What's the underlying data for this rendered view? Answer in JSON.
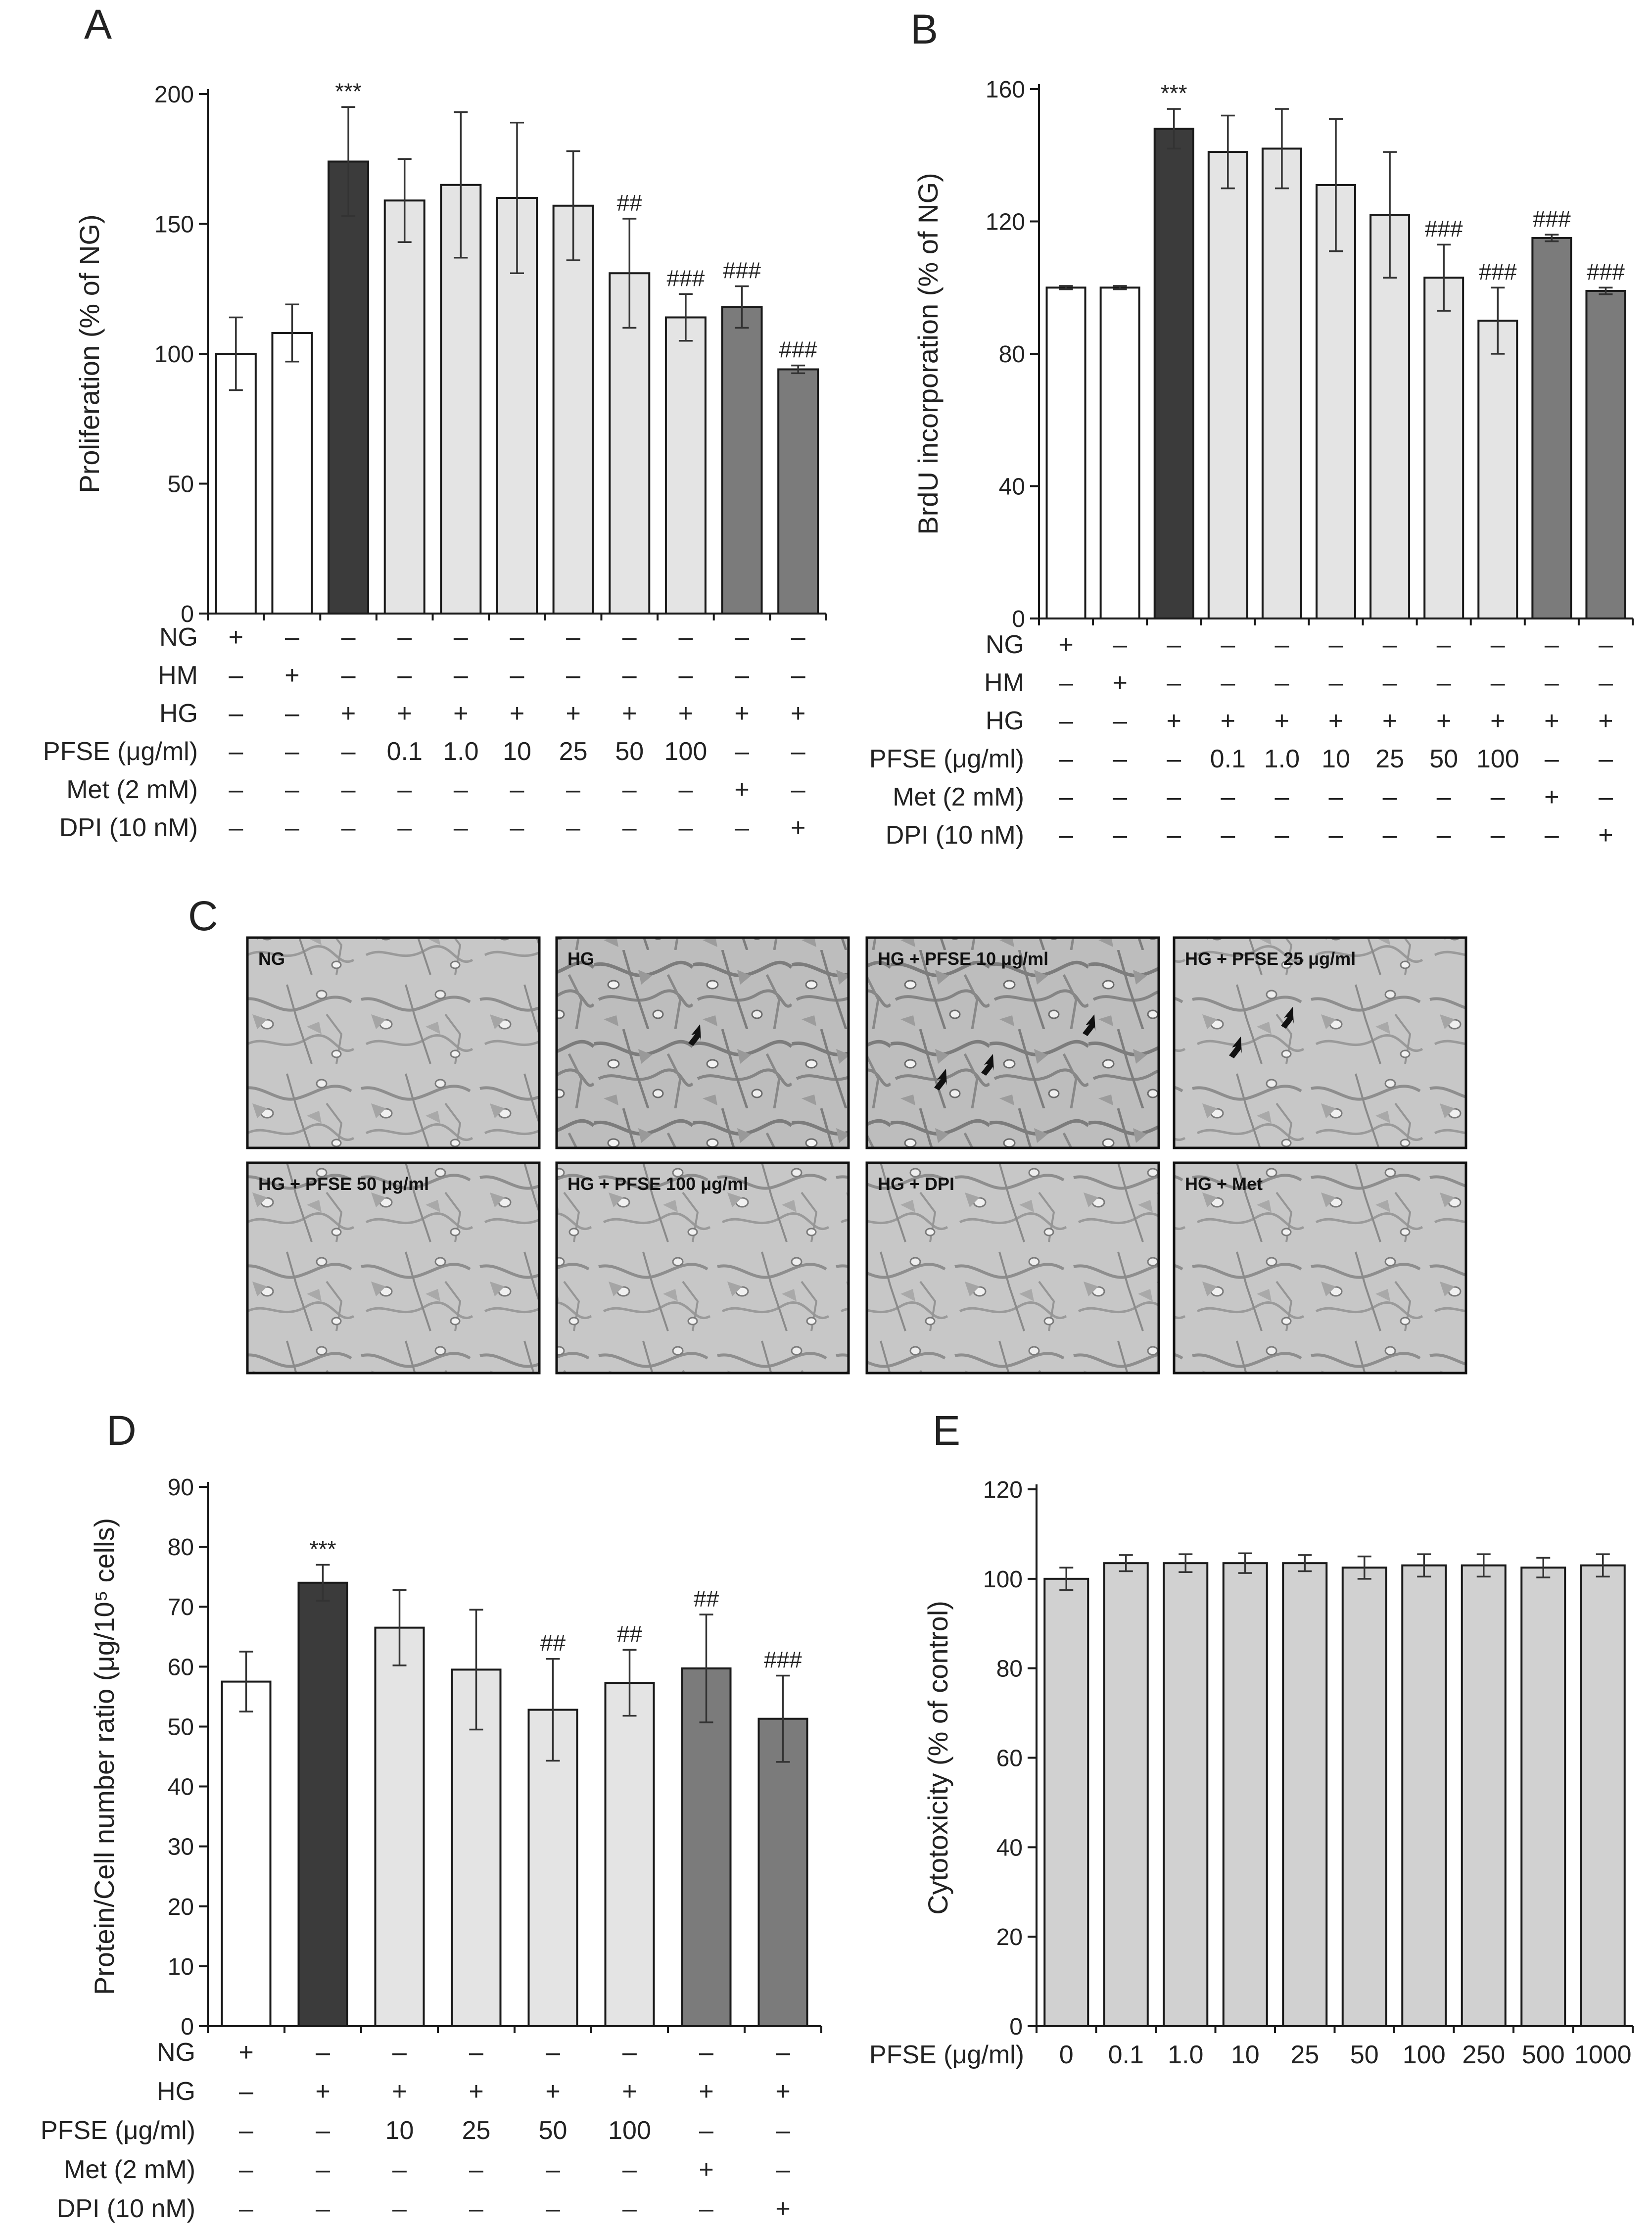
{
  "chart_data": [
    {
      "panel": "A",
      "type": "bar",
      "ylabel": "Proliferation (% of NG)",
      "ylim": [
        0,
        200
      ],
      "yticks": [
        0,
        50,
        100,
        150,
        200
      ],
      "values": [
        100,
        108,
        174,
        159,
        165,
        160,
        157,
        131,
        114,
        118,
        94
      ],
      "errors": [
        14,
        11,
        21,
        16,
        28,
        29,
        21,
        21,
        9,
        8,
        1.5
      ],
      "colors": [
        "white",
        "white",
        "dark",
        "light",
        "light",
        "light",
        "light",
        "light",
        "light",
        "mid",
        "mid"
      ],
      "significance": [
        "",
        "",
        "***",
        "",
        "",
        "",
        "",
        "##",
        "###",
        "###",
        "###"
      ],
      "conditions": [
        {
          "label": "NG",
          "marks": [
            "+",
            "–",
            "–",
            "–",
            "–",
            "–",
            "–",
            "–",
            "–",
            "–",
            "–"
          ]
        },
        {
          "label": "HM",
          "marks": [
            "–",
            "+",
            "–",
            "–",
            "–",
            "–",
            "–",
            "–",
            "–",
            "–",
            "–"
          ]
        },
        {
          "label": "HG",
          "marks": [
            "–",
            "–",
            "+",
            "+",
            "+",
            "+",
            "+",
            "+",
            "+",
            "+",
            "+"
          ]
        },
        {
          "label": "PFSE (μg/ml)",
          "marks": [
            "–",
            "–",
            "–",
            "0.1",
            "1.0",
            "10",
            "25",
            "50",
            "100",
            "–",
            "–"
          ]
        },
        {
          "label": "Met (2 mM)",
          "marks": [
            "–",
            "–",
            "–",
            "–",
            "–",
            "–",
            "–",
            "–",
            "–",
            "+",
            "–"
          ]
        },
        {
          "label": "DPI (10 nM)",
          "marks": [
            "–",
            "–",
            "–",
            "–",
            "–",
            "–",
            "–",
            "–",
            "–",
            "–",
            "+"
          ]
        }
      ]
    },
    {
      "panel": "B",
      "type": "bar",
      "ylabel": "BrdU incorporation (% of NG)",
      "ylim": [
        0,
        160
      ],
      "yticks": [
        0,
        40,
        80,
        120,
        160
      ],
      "values": [
        100,
        100,
        148,
        141,
        142,
        131,
        122,
        103,
        90,
        115,
        99
      ],
      "errors": [
        0.5,
        0.5,
        6,
        11,
        12,
        20,
        19,
        10,
        10,
        1,
        1
      ],
      "colors": [
        "white",
        "white",
        "dark",
        "light",
        "light",
        "light",
        "light",
        "light",
        "light",
        "mid",
        "mid"
      ],
      "significance": [
        "",
        "",
        "***",
        "",
        "",
        "",
        "",
        "###",
        "###",
        "###",
        "###"
      ],
      "conditions": [
        {
          "label": "NG",
          "marks": [
            "+",
            "–",
            "–",
            "–",
            "–",
            "–",
            "–",
            "–",
            "–",
            "–",
            "–"
          ]
        },
        {
          "label": "HM",
          "marks": [
            "–",
            "+",
            "–",
            "–",
            "–",
            "–",
            "–",
            "–",
            "–",
            "–",
            "–"
          ]
        },
        {
          "label": "HG",
          "marks": [
            "–",
            "–",
            "+",
            "+",
            "+",
            "+",
            "+",
            "+",
            "+",
            "+",
            "+"
          ]
        },
        {
          "label": "PFSE (μg/ml)",
          "marks": [
            "–",
            "–",
            "–",
            "0.1",
            "1.0",
            "10",
            "25",
            "50",
            "100",
            "–",
            "–"
          ]
        },
        {
          "label": "Met (2 mM)",
          "marks": [
            "–",
            "–",
            "–",
            "–",
            "–",
            "–",
            "–",
            "–",
            "–",
            "+",
            "–"
          ]
        },
        {
          "label": "DPI (10 nM)",
          "marks": [
            "–",
            "–",
            "–",
            "–",
            "–",
            "–",
            "–",
            "–",
            "–",
            "–",
            "+"
          ]
        }
      ]
    },
    {
      "panel": "D",
      "type": "bar",
      "ylabel": "Protein/Cell number ratio (μg/10⁵ cells)",
      "ylim": [
        0,
        90
      ],
      "yticks": [
        0,
        10,
        20,
        30,
        40,
        50,
        60,
        70,
        80,
        90
      ],
      "values": [
        57.5,
        74,
        66.5,
        59.5,
        52.8,
        57.3,
        59.7,
        51.3
      ],
      "errors": [
        5,
        3,
        6.3,
        10,
        8.5,
        5.5,
        9,
        7.2
      ],
      "colors": [
        "white",
        "dark",
        "light",
        "light",
        "light",
        "light",
        "mid",
        "mid"
      ],
      "significance": [
        "",
        "***",
        "",
        "",
        "##",
        "##",
        "##",
        "###"
      ],
      "conditions": [
        {
          "label": "NG",
          "marks": [
            "+",
            "–",
            "–",
            "–",
            "–",
            "–",
            "–",
            "–"
          ]
        },
        {
          "label": "HG",
          "marks": [
            "–",
            "+",
            "+",
            "+",
            "+",
            "+",
            "+",
            "+"
          ]
        },
        {
          "label": "PFSE (μg/ml)",
          "marks": [
            "–",
            "–",
            "10",
            "25",
            "50",
            "100",
            "–",
            "–"
          ]
        },
        {
          "label": "Met (2 mM)",
          "marks": [
            "–",
            "–",
            "–",
            "–",
            "–",
            "–",
            "+",
            "–"
          ]
        },
        {
          "label": "DPI (10 nM)",
          "marks": [
            "–",
            "–",
            "–",
            "–",
            "–",
            "–",
            "–",
            "+"
          ]
        }
      ]
    },
    {
      "panel": "E",
      "type": "bar",
      "ylabel": "Cytotoxicity (% of control)",
      "ylim": [
        0,
        120
      ],
      "yticks": [
        0,
        20,
        40,
        60,
        80,
        100,
        120
      ],
      "values": [
        100,
        103.5,
        103.5,
        103.5,
        103.5,
        102.5,
        103,
        103,
        102.5,
        103
      ],
      "errors": [
        2.5,
        1.8,
        2,
        2.2,
        1.8,
        2.5,
        2.5,
        2.5,
        2.2,
        2.5
      ],
      "colors": [
        "light",
        "light",
        "light",
        "light",
        "light",
        "light",
        "light",
        "light",
        "light",
        "light"
      ],
      "significance": [
        "",
        "",
        "",
        "",
        "",
        "",
        "",
        "",
        "",
        ""
      ],
      "conditions": [
        {
          "label": "PFSE (μg/ml)",
          "marks": [
            "0",
            "0.1",
            "1.0",
            "10",
            "25",
            "50",
            "100",
            "250",
            "500",
            "1000"
          ]
        }
      ]
    }
  ],
  "panel_letters": {
    "A": "A",
    "B": "B",
    "C": "C",
    "D": "D",
    "E": "E"
  },
  "micrographs": [
    "NG",
    "HG",
    "HG + PFSE 10  μg/ml",
    "HG + PFSE 25  μg/ml",
    "HG + PFSE 50  μg/ml",
    "HG + PFSE 100  μg/ml",
    "HG + DPI",
    "HG + Met"
  ],
  "colors": {
    "white": "#ffffff",
    "dark": "#3b3b3b",
    "light": "#e4e4e4",
    "mid": "#7b7b7b",
    "lightE": "#d1d1d1",
    "micro_bg": "#c9c9c9",
    "cell": "#8e8e8e",
    "cell_hi": "#f2f2f2"
  }
}
